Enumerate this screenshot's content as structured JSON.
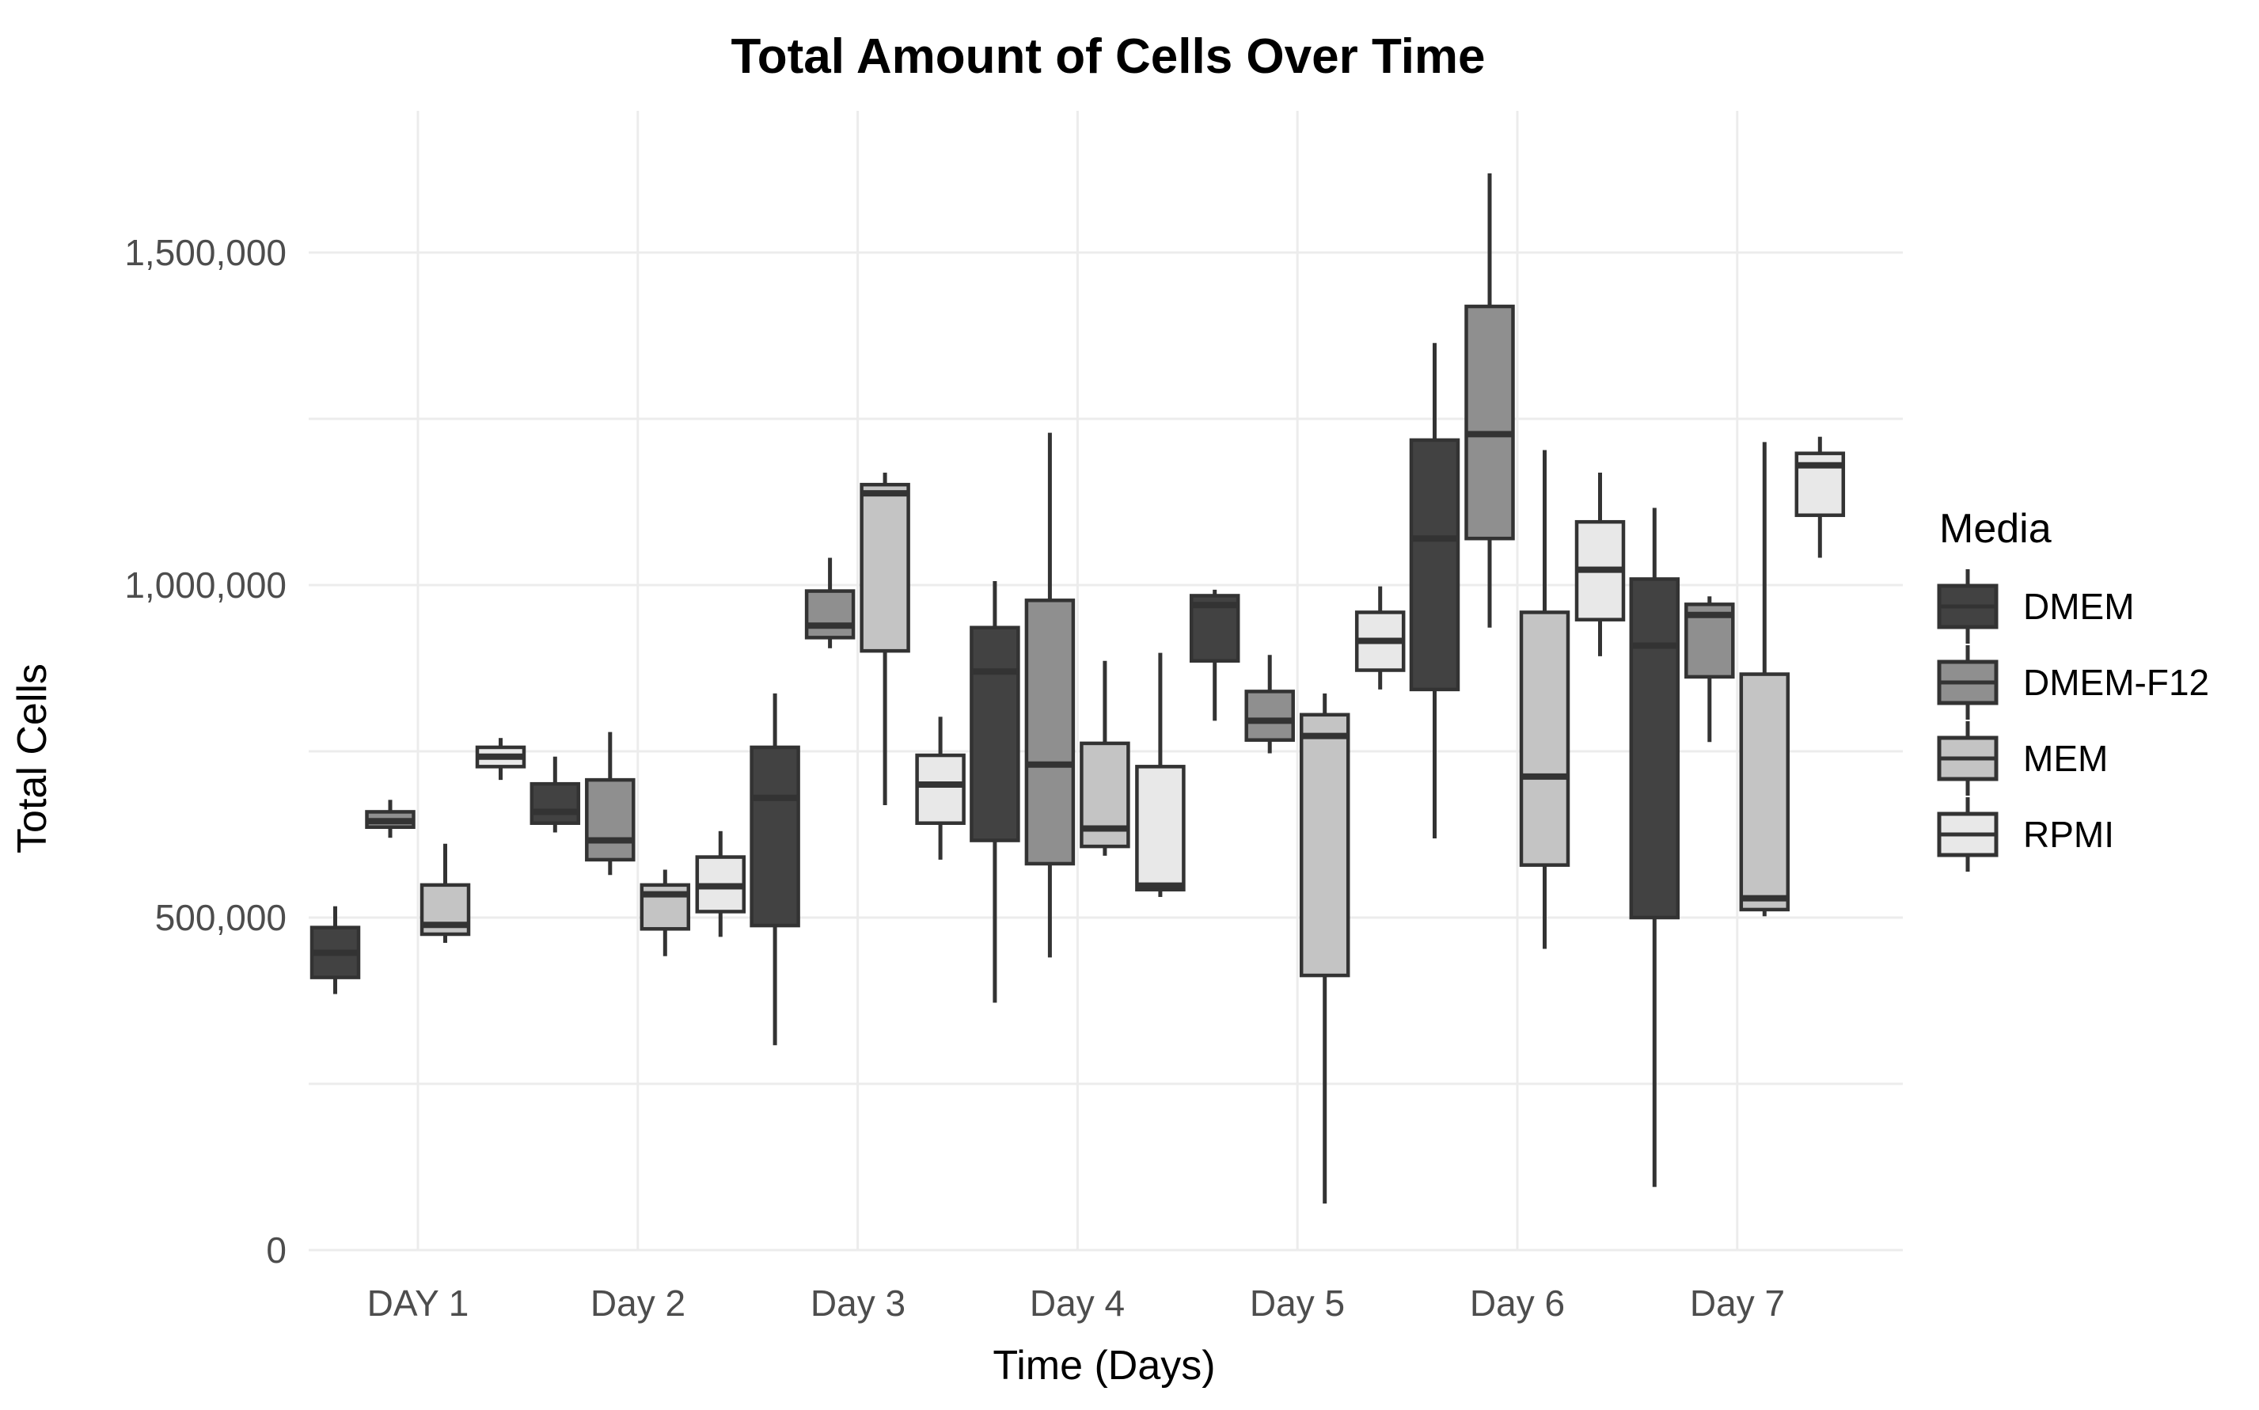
{
  "colors": {
    "background": "#ffffff",
    "gridline": "#ececec",
    "box_border": "#333333",
    "axis_text": "#4d4d4d",
    "title_text": "#000000"
  },
  "chart_data": {
    "type": "boxplot",
    "title": "Total Amount of Cells Over Time",
    "xlabel": "Time (Days)",
    "ylabel": "Total Cells",
    "categories": [
      "DAY 1",
      "Day 2",
      "Day 3",
      "Day 4",
      "Day 5",
      "Day 6",
      "Day 7"
    ],
    "y_ticks": [
      "0",
      "500,000",
      "1,000,000",
      "1,500,000"
    ],
    "y_tick_values": [
      0,
      500000,
      1000000,
      1500000
    ],
    "y_grid_values": [
      0,
      250000,
      500000,
      750000,
      1000000,
      1250000,
      1500000
    ],
    "ylim": [
      0,
      1715000
    ],
    "grid": true,
    "legend": {
      "title": "Media",
      "position": "right",
      "items": [
        {
          "label": "DMEM",
          "fill": "#424242"
        },
        {
          "label": "DMEM-F12",
          "fill": "#8f8f8f"
        },
        {
          "label": "MEM",
          "fill": "#c4c4c4"
        },
        {
          "label": "RPMI",
          "fill": "#e8e8e8"
        }
      ]
    },
    "series": [
      {
        "name": "DMEM",
        "fill": "#424242",
        "boxes": [
          {
            "day": "DAY 1",
            "min": 385000,
            "q1": 410000,
            "median": 447000,
            "q3": 485000,
            "max": 517000
          },
          {
            "day": "Day 2",
            "min": 628000,
            "q1": 642000,
            "median": 659000,
            "q3": 701000,
            "max": 742000
          },
          {
            "day": "Day 3",
            "min": 308000,
            "q1": 488000,
            "median": 680000,
            "q3": 756000,
            "max": 837000
          },
          {
            "day": "Day 4",
            "min": 372000,
            "q1": 616000,
            "median": 870000,
            "q3": 936000,
            "max": 1006000
          },
          {
            "day": "Day 5",
            "min": 796000,
            "q1": 886000,
            "median": 970000,
            "q3": 984000,
            "max": 993000
          },
          {
            "day": "Day 6",
            "min": 619000,
            "q1": 843000,
            "median": 1070000,
            "q3": 1218000,
            "max": 1364000
          },
          {
            "day": "Day 7",
            "min": 95000,
            "q1": 500000,
            "median": 909000,
            "q3": 1009000,
            "max": 1116000
          }
        ]
      },
      {
        "name": "DMEM-F12",
        "fill": "#8f8f8f",
        "boxes": [
          {
            "day": "DAY 1",
            "min": 620000,
            "q1": 636000,
            "median": 645000,
            "q3": 659000,
            "max": 677000
          },
          {
            "day": "Day 2",
            "min": 564000,
            "q1": 587000,
            "median": 616000,
            "q3": 707000,
            "max": 779000
          },
          {
            "day": "Day 3",
            "min": 905000,
            "q1": 921000,
            "median": 939000,
            "q3": 991000,
            "max": 1041000
          },
          {
            "day": "Day 4",
            "min": 440000,
            "q1": 581000,
            "median": 730000,
            "q3": 977000,
            "max": 1229000
          },
          {
            "day": "Day 5",
            "min": 747000,
            "q1": 767000,
            "median": 796000,
            "q3": 840000,
            "max": 895000
          },
          {
            "day": "Day 6",
            "min": 936000,
            "q1": 1070000,
            "median": 1227000,
            "q3": 1419000,
            "max": 1619000
          },
          {
            "day": "Day 7",
            "min": 764000,
            "q1": 862000,
            "median": 955000,
            "q3": 971000,
            "max": 983000
          }
        ]
      },
      {
        "name": "MEM",
        "fill": "#c4c4c4",
        "boxes": [
          {
            "day": "DAY 1",
            "min": 462000,
            "q1": 475000,
            "median": 489000,
            "q3": 549000,
            "max": 611000
          },
          {
            "day": "Day 2",
            "min": 442000,
            "q1": 483000,
            "median": 535000,
            "q3": 549000,
            "max": 572000
          },
          {
            "day": "Day 3",
            "min": 669000,
            "q1": 901000,
            "median": 1138000,
            "q3": 1151000,
            "max": 1169000
          },
          {
            "day": "Day 4",
            "min": 593000,
            "q1": 607000,
            "median": 634000,
            "q3": 762000,
            "max": 886000
          },
          {
            "day": "Day 5",
            "min": 70000,
            "q1": 413000,
            "median": 773000,
            "q3": 805000,
            "max": 837000
          },
          {
            "day": "Day 6",
            "min": 453000,
            "q1": 579000,
            "median": 712000,
            "q3": 959000,
            "max": 1203000
          },
          {
            "day": "Day 7",
            "min": 502000,
            "q1": 512000,
            "median": 529000,
            "q3": 866000,
            "max": 1215000
          }
        ]
      },
      {
        "name": "RPMI",
        "fill": "#e8e8e8",
        "boxes": [
          {
            "day": "DAY 1",
            "min": 707000,
            "q1": 727000,
            "median": 742000,
            "q3": 756000,
            "max": 770000
          },
          {
            "day": "Day 2",
            "min": 471000,
            "q1": 509000,
            "median": 547000,
            "q3": 591000,
            "max": 630000
          },
          {
            "day": "Day 3",
            "min": 587000,
            "q1": 642000,
            "median": 700000,
            "q3": 744000,
            "max": 802000
          },
          {
            "day": "Day 4",
            "min": 531000,
            "q1": 542000,
            "median": 548000,
            "q3": 727000,
            "max": 898000
          },
          {
            "day": "Day 5",
            "min": 843000,
            "q1": 872000,
            "median": 916000,
            "q3": 959000,
            "max": 998000
          },
          {
            "day": "Day 6",
            "min": 893000,
            "q1": 948000,
            "median": 1023000,
            "q3": 1095000,
            "max": 1169000
          },
          {
            "day": "Day 7",
            "min": 1041000,
            "q1": 1105000,
            "median": 1180000,
            "q3": 1198000,
            "max": 1223000
          }
        ]
      }
    ]
  }
}
